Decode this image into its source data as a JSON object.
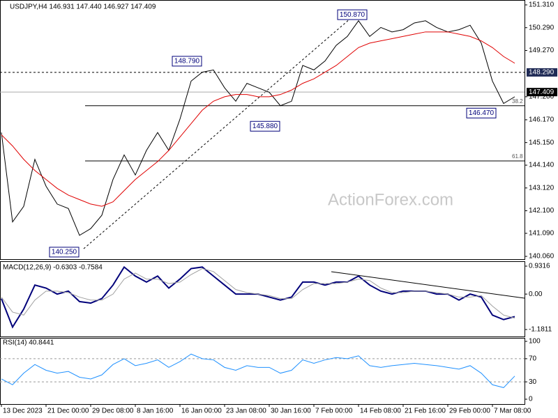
{
  "chart_data": [
    {
      "type": "line",
      "title": "USDJPY,H4 146.931 147.440 146.927 147.409",
      "watermark": "ActionForex.com",
      "ylim": [
        139.935,
        151.528
      ],
      "yticks": [
        {
          "value": 151.31,
          "label": "151.310"
        },
        {
          "value": 150.29,
          "label": "150.290"
        },
        {
          "value": 149.27,
          "label": "149.270"
        },
        {
          "value": 147.2,
          "label": "147.200"
        },
        {
          "value": 146.17,
          "label": "146.170"
        },
        {
          "value": 145.15,
          "label": "145.150"
        },
        {
          "value": 144.14,
          "label": "144.140"
        },
        {
          "value": 143.12,
          "label": "143.120"
        },
        {
          "value": 142.1,
          "label": "142.100"
        },
        {
          "value": 141.09,
          "label": "141.090"
        },
        {
          "value": 140.06,
          "label": "140.060"
        }
      ],
      "levels": [
        {
          "value": 148.29,
          "label": "148.290"
        },
        {
          "value": 147.409,
          "label": "147.409"
        }
      ],
      "fib_levels": [
        {
          "value": 146.8,
          "label": "38.2"
        },
        {
          "value": 144.33,
          "label": "61.8"
        }
      ],
      "callouts": [
        {
          "value": 150.87,
          "label": "150.870"
        },
        {
          "value": 148.79,
          "label": "148.790"
        },
        {
          "value": 145.88,
          "label": "145.880"
        },
        {
          "value": 146.47,
          "label": "146.470"
        },
        {
          "value": 140.25,
          "label": "140.250"
        }
      ],
      "series": [
        {
          "color": "#000000",
          "values": [
            145.6,
            141.6,
            142.3,
            144.4,
            143.2,
            142.4,
            142.2,
            141.0,
            141.3,
            141.9,
            143.5,
            144.6,
            143.7,
            144.8,
            145.6,
            144.8,
            146.2,
            147.9,
            148.3,
            148.4,
            147.6,
            147.0,
            147.8,
            147.6,
            147.4,
            146.8,
            147.0,
            148.6,
            148.4,
            148.8,
            149.5,
            149.9,
            150.6,
            149.9,
            150.3,
            150.1,
            150.2,
            150.5,
            150.6,
            150.3,
            150.1,
            150.2,
            150.4,
            149.6,
            147.9,
            146.9,
            147.2
          ]
        },
        {
          "color": "#e00000",
          "values": [
            145.5,
            145.0,
            144.4,
            143.9,
            143.5,
            143.1,
            142.8,
            142.6,
            142.4,
            142.3,
            142.5,
            143.0,
            143.5,
            143.9,
            144.3,
            144.8,
            145.4,
            146.0,
            146.6,
            147.0,
            147.2,
            147.3,
            147.3,
            147.2,
            147.2,
            147.3,
            147.5,
            147.8,
            148.0,
            148.3,
            148.6,
            149.0,
            149.4,
            149.6,
            149.7,
            149.8,
            149.9,
            150.0,
            150.1,
            150.1,
            150.1,
            150.0,
            149.9,
            149.7,
            149.4,
            149.0,
            148.7
          ]
        }
      ]
    },
    {
      "type": "line",
      "title": "MACD(12,26,9) -0.6303 -0.7584",
      "ylim": [
        -1.413,
        1.094
      ],
      "yticks": [
        0.9316,
        {
          "value": 0,
          "label": "0.00"
        },
        -1.1811
      ],
      "series": [
        {
          "color": "#00007a",
          "values": [
            -0.15,
            -1.1,
            -0.5,
            0.3,
            0.2,
            0.0,
            0.1,
            -0.25,
            -0.3,
            -0.15,
            0.3,
            0.9,
            0.6,
            0.4,
            0.6,
            0.2,
            0.5,
            0.85,
            0.9,
            0.6,
            0.3,
            0.0,
            0.0,
            0.0,
            -0.1,
            -0.2,
            -0.1,
            0.4,
            0.4,
            0.3,
            0.4,
            0.4,
            0.6,
            0.3,
            0.1,
            0.0,
            0.1,
            0.1,
            0.1,
            0.0,
            0.0,
            -0.2,
            0.0,
            -0.1,
            -0.7,
            -0.85,
            -0.75
          ]
        },
        {
          "color": "#a0a0a0",
          "values": [
            -0.1,
            -0.6,
            -0.7,
            -0.2,
            0.1,
            0.1,
            0.05,
            -0.1,
            -0.2,
            -0.2,
            0.0,
            0.5,
            0.7,
            0.5,
            0.5,
            0.35,
            0.4,
            0.65,
            0.85,
            0.75,
            0.45,
            0.15,
            0.05,
            0.0,
            -0.05,
            -0.15,
            -0.15,
            0.15,
            0.35,
            0.35,
            0.35,
            0.4,
            0.5,
            0.45,
            0.2,
            0.05,
            0.05,
            0.1,
            0.1,
            0.05,
            0.0,
            -0.1,
            -0.1,
            -0.05,
            -0.4,
            -0.7,
            -0.8
          ]
        }
      ]
    },
    {
      "type": "line",
      "title": "RSI(14) 40.8441",
      "ylim": [
        -8.4,
        106
      ],
      "yticks": [
        100,
        70,
        30,
        0
      ],
      "levels": [
        70,
        30
      ],
      "categories": [
        "13 Dec 2023",
        null,
        null,
        null,
        "21 Dec 00:00",
        null,
        null,
        null,
        "29 Dec 08:00",
        null,
        null,
        null,
        "8 Jan 16:00",
        null,
        null,
        null,
        "16 Jan 00:00",
        null,
        null,
        null,
        "23 Jan 08:00",
        null,
        null,
        null,
        "30 Jan 16:00",
        null,
        null,
        null,
        "7 Feb 00:00",
        null,
        null,
        null,
        "14 Feb 08:00",
        null,
        null,
        null,
        "21 Feb 16:00",
        null,
        null,
        null,
        "29 Feb 00:00",
        null,
        null,
        null,
        "7 Mar 08:00",
        null,
        null
      ],
      "series": [
        {
          "color": "#1e90ff",
          "values": [
            35,
            25,
            45,
            60,
            50,
            45,
            48,
            38,
            35,
            42,
            60,
            70,
            58,
            62,
            68,
            55,
            65,
            78,
            70,
            68,
            55,
            50,
            58,
            55,
            55,
            45,
            50,
            68,
            62,
            68,
            72,
            70,
            75,
            58,
            55,
            58,
            60,
            62,
            60,
            58,
            55,
            52,
            58,
            45,
            25,
            20,
            40
          ]
        }
      ]
    }
  ]
}
